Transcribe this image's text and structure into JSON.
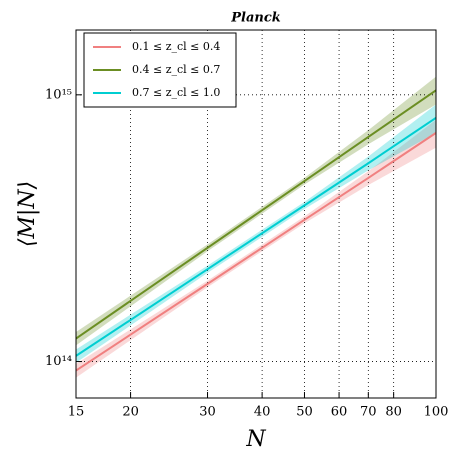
{
  "chart_data": {
    "type": "line",
    "title": "Planck",
    "xlabel": "N",
    "ylabel": "⟨M|N⟩",
    "xscale": "log",
    "yscale": "log",
    "grid": true,
    "legend": "upper left",
    "x": [
      15,
      30,
      50,
      70,
      100
    ],
    "series": [
      {
        "name": "0.1 ≤ z_cl ≤ 0.4",
        "color": "#f08080",
        "values": [
          92500000000000.0,
          195500000000000.0,
          340000000000000.0,
          488000000000000.0,
          720000000000000.0
        ],
        "lower": [
          87000000000000.0,
          190000000000000.0,
          330000000000000.0,
          459000000000000.0,
          634000000000000.0
        ],
        "upper": [
          98000000000000.0,
          201000000000000.0,
          350000000000000.0,
          517000000000000.0,
          806000000000000.0
        ]
      },
      {
        "name": "0.4 ≤ z_cl ≤ 0.7",
        "color": "#6b8e23",
        "values": [
          122000000000000.0,
          267000000000000.0,
          475000000000000.0,
          695000000000000.0,
          1040000000000000.0
        ],
        "lower": [
          115000000000000.0,
          259000000000000.0,
          461000000000000.0,
          653000000000000.0,
          920000000000000.0
        ],
        "upper": [
          129000000000000.0,
          275000000000000.0,
          489000000000000.0,
          737000000000000.0,
          1170000000000000.0
        ]
      },
      {
        "name": "0.7 ≤ z_cl ≤ 1.0",
        "color": "#00ced1",
        "values": [
          105000000000000.0,
          222000000000000.0,
          385000000000000.0,
          554000000000000.0,
          820000000000000.0
        ],
        "lower": [
          99000000000000.0,
          215000000000000.0,
          373000000000000.0,
          521000000000000.0,
          720000000000000.0
        ],
        "upper": [
          111000000000000.0,
          229000000000000.0,
          397000000000000.0,
          587000000000000.0,
          920000000000000.0
        ]
      }
    ],
    "xlim": [
      15,
      100
    ],
    "xticks": [
      15,
      20,
      30,
      40,
      50,
      60,
      70,
      80,
      100
    ],
    "ylim": [
      73000000000000.0,
      1750000000000000.0
    ],
    "yticks": [
      {
        "value": 100000000000000.0,
        "label": "10¹⁴"
      },
      {
        "value": 1000000000000000.0,
        "label": "10¹⁵"
      }
    ]
  }
}
